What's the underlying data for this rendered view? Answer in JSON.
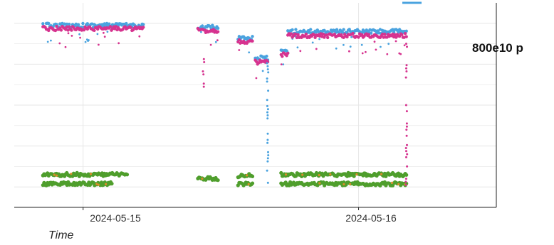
{
  "chart_data": {
    "type": "scatter",
    "title": "",
    "xlabel": "Time",
    "ylabel": "",
    "annotation": "800e10 p",
    "x_ticks": [
      "2024-05-15",
      "2024-05-16"
    ],
    "xlim": [
      "2024-05-14T18:00",
      "2024-05-16T12:00"
    ],
    "grid": true,
    "legend": "none",
    "colors": {
      "blue": "#4aa3df",
      "pink": "#d6338f",
      "green": "#4f9e2c",
      "orange": "#d98c2a",
      "grid": "#e6e6e6",
      "axis": "#222222"
    },
    "series": [
      {
        "color_key": "blue",
        "note": "upper band, approximate",
        "segments": [
          {
            "x": [
              "2024-05-14T20:30",
              "2024-05-15T05:15"
            ],
            "level": 0.89
          },
          {
            "x": [
              "2024-05-15T10:00",
              "2024-05-15T11:45"
            ],
            "level": 0.88
          },
          {
            "x": [
              "2024-05-15T13:30",
              "2024-05-15T14:45"
            ],
            "level": 0.83
          },
          {
            "x": [
              "2024-05-15T15:00",
              "2024-05-15T16:05"
            ],
            "level": 0.73
          },
          {
            "x": [
              "2024-05-15T17:15",
              "2024-05-15T17:50"
            ],
            "level": 0.76
          },
          {
            "x": [
              "2024-05-15T17:50",
              "2024-05-16T04:10"
            ],
            "level": 0.86
          }
        ]
      },
      {
        "color_key": "pink",
        "note": "upper band, approximate",
        "segments": [
          {
            "x": [
              "2024-05-14T20:30",
              "2024-05-15T05:15"
            ],
            "level": 0.875
          },
          {
            "x": [
              "2024-05-15T10:00",
              "2024-05-15T11:45"
            ],
            "level": 0.865
          },
          {
            "x": [
              "2024-05-15T13:30",
              "2024-05-15T14:45"
            ],
            "level": 0.81
          },
          {
            "x": [
              "2024-05-15T15:00",
              "2024-05-15T16:05"
            ],
            "level": 0.71
          },
          {
            "x": [
              "2024-05-15T17:15",
              "2024-05-15T17:50"
            ],
            "level": 0.745
          },
          {
            "x": [
              "2024-05-15T17:50",
              "2024-05-16T04:10"
            ],
            "level": 0.84
          }
        ]
      },
      {
        "color_key": "green",
        "note": "lower bands, approximate",
        "segments": [
          {
            "x": [
              "2024-05-14T20:30",
              "2024-05-15T03:50"
            ],
            "level": 0.16
          },
          {
            "x": [
              "2024-05-14T20:30",
              "2024-05-15T02:30"
            ],
            "level": 0.115
          },
          {
            "x": [
              "2024-05-15T10:00",
              "2024-05-15T11:45"
            ],
            "level": 0.14
          },
          {
            "x": [
              "2024-05-15T13:30",
              "2024-05-15T14:45"
            ],
            "level": 0.155
          },
          {
            "x": [
              "2024-05-15T13:30",
              "2024-05-15T14:45"
            ],
            "level": 0.115
          },
          {
            "x": [
              "2024-05-15T17:15",
              "2024-05-16T04:10"
            ],
            "level": 0.16
          },
          {
            "x": [
              "2024-05-15T17:15",
              "2024-05-16T04:10"
            ],
            "level": 0.115
          }
        ]
      }
    ]
  }
}
